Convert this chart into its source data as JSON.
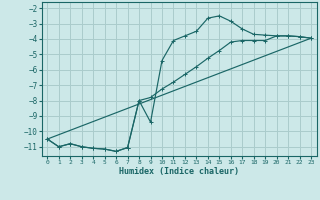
{
  "xlabel": "Humidex (Indice chaleur)",
  "bg_color": "#cce8e8",
  "grid_color": "#aacccc",
  "line_color": "#1a6666",
  "xlim": [
    -0.5,
    23.5
  ],
  "ylim": [
    -11.6,
    -1.6
  ],
  "xticks": [
    0,
    1,
    2,
    3,
    4,
    5,
    6,
    7,
    8,
    9,
    10,
    11,
    12,
    13,
    14,
    15,
    16,
    17,
    18,
    19,
    20,
    21,
    22,
    23
  ],
  "yticks": [
    -11,
    -10,
    -9,
    -8,
    -7,
    -6,
    -5,
    -4,
    -3,
    -2
  ],
  "line1_x": [
    0,
    1,
    2,
    3,
    4,
    5,
    6,
    7,
    8,
    9,
    10,
    11,
    12,
    13,
    14,
    15,
    16,
    17,
    18,
    19,
    20,
    21,
    22,
    23
  ],
  "line1_y": [
    -10.5,
    -11.0,
    -10.8,
    -11.0,
    -11.1,
    -11.15,
    -11.3,
    -11.05,
    -8.0,
    -9.4,
    -5.4,
    -4.1,
    -3.8,
    -3.5,
    -2.65,
    -2.5,
    -2.85,
    -3.35,
    -3.7,
    -3.75,
    -3.8,
    -3.8,
    -3.85,
    -3.95
  ],
  "line2_x": [
    0,
    1,
    2,
    3,
    4,
    5,
    6,
    7,
    8,
    9,
    10,
    11,
    12,
    13,
    14,
    15,
    16,
    17,
    18,
    19,
    20,
    21,
    22,
    23
  ],
  "line2_y": [
    -10.5,
    -11.0,
    -10.8,
    -11.0,
    -11.1,
    -11.15,
    -11.3,
    -11.05,
    -8.0,
    -7.8,
    -7.25,
    -6.8,
    -6.3,
    -5.8,
    -5.25,
    -4.75,
    -4.2,
    -4.1,
    -4.1,
    -4.1,
    -3.8,
    -3.8,
    -3.85,
    -3.95
  ],
  "line3_x": [
    0,
    23
  ],
  "line3_y": [
    -10.5,
    -3.95
  ]
}
